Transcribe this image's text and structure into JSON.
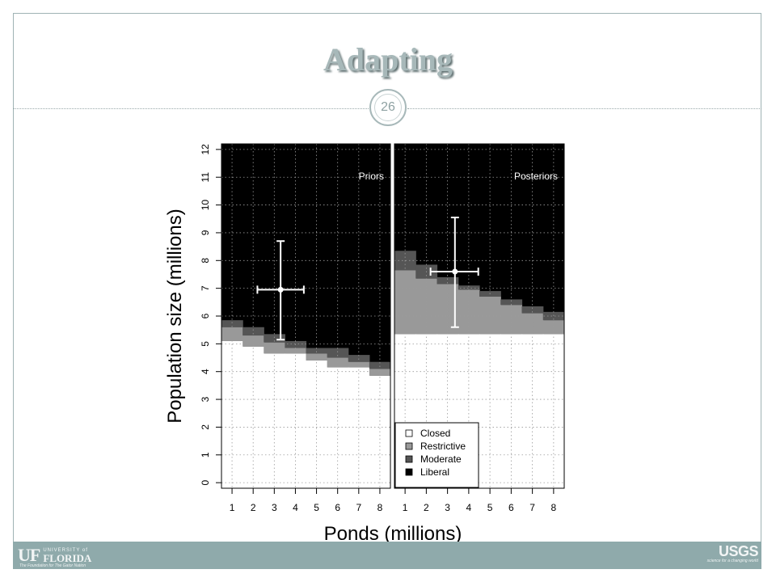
{
  "slide": {
    "title": "Adapting",
    "number": "26"
  },
  "footer": {
    "left_logo_mark": "UF",
    "left_logo_univ": "UNIVERSITY of",
    "left_logo_name": "FLORIDA",
    "left_logo_tag": "The Foundation for The Gator Nation",
    "right_logo_name": "USGS",
    "right_logo_tag": "science for a changing world"
  },
  "colors": {
    "Closed": "#ffffff",
    "Restrictive": "#999999",
    "Moderate": "#555555",
    "Liberal": "#000000",
    "accent": "#a7b8b9"
  },
  "chart_data": {
    "type": "heatmap",
    "xlabel": "Ponds (millions)",
    "ylabel": "Population size (millions)",
    "xlim": [
      0.5,
      8.5
    ],
    "ylim": [
      -0.2,
      12.2
    ],
    "x_ticks": [
      1,
      2,
      3,
      4,
      5,
      6,
      7,
      8
    ],
    "y_ticks": [
      0,
      1,
      2,
      3,
      4,
      5,
      6,
      7,
      8,
      9,
      10,
      11,
      12
    ],
    "grid": true,
    "x_bins": [
      [
        0.5,
        1.5
      ],
      [
        1.5,
        2.5
      ],
      [
        2.5,
        3.5
      ],
      [
        3.5,
        4.5
      ],
      [
        4.5,
        5.5
      ],
      [
        5.5,
        6.5
      ],
      [
        6.5,
        7.5
      ],
      [
        7.5,
        8.5
      ]
    ],
    "legend": {
      "placement": "bottom-left of right panel",
      "entries": [
        "Closed",
        "Restrictive",
        "Moderate",
        "Liberal"
      ]
    },
    "panels": [
      {
        "label": "Priors",
        "thresholds": {
          "closed_top": [
            5.1,
            4.9,
            4.65,
            4.65,
            4.4,
            4.15,
            4.15,
            3.85
          ],
          "restrictive_top": [
            5.6,
            5.3,
            5.05,
            4.85,
            4.65,
            4.5,
            4.35,
            4.1
          ],
          "moderate_top": [
            5.85,
            5.6,
            5.35,
            5.1,
            4.85,
            4.85,
            4.6,
            4.35
          ]
        },
        "point": {
          "x": 3.3,
          "y": 6.95,
          "x_err": [
            2.2,
            4.4
          ],
          "y_err": [
            5.15,
            8.7
          ]
        }
      },
      {
        "label": "Posteriors",
        "thresholds": {
          "closed_top": [
            5.35,
            5.35,
            5.35,
            5.35,
            5.35,
            5.35,
            5.35,
            5.35
          ],
          "restrictive_top": [
            7.65,
            7.35,
            7.15,
            6.95,
            6.7,
            6.4,
            6.1,
            5.85
          ],
          "moderate_top": [
            8.35,
            7.85,
            7.4,
            7.1,
            6.9,
            6.6,
            6.35,
            6.15
          ]
        },
        "point": {
          "x": 3.35,
          "y": 7.6,
          "x_err": [
            2.2,
            4.45
          ],
          "y_err": [
            5.6,
            9.55
          ]
        }
      }
    ]
  }
}
